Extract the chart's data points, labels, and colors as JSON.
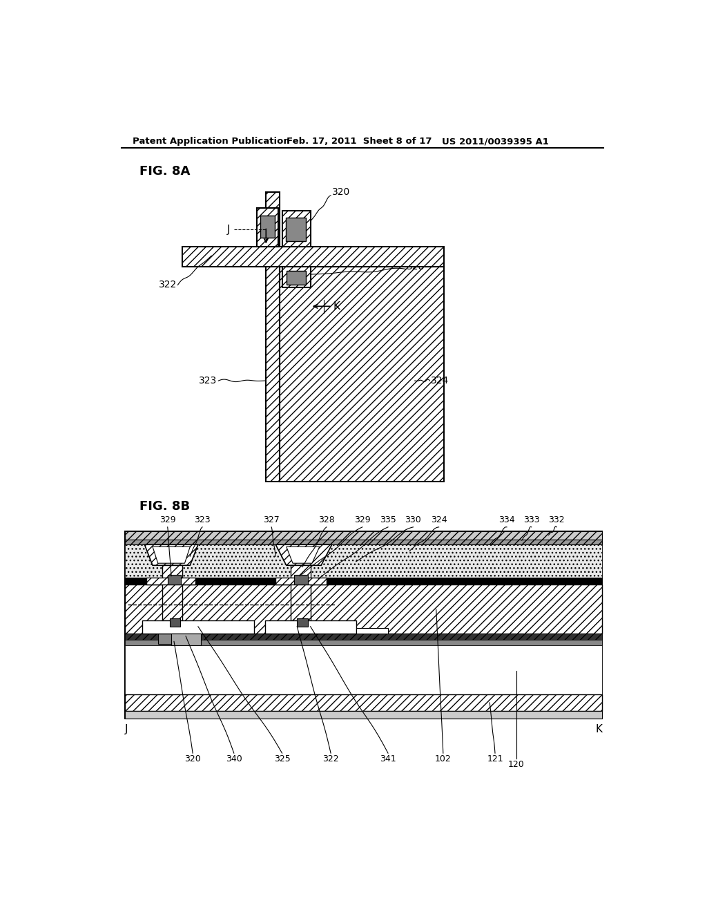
{
  "bg_color": "#ffffff",
  "header_left": "Patent Application Publication",
  "header_mid": "Feb. 17, 2011  Sheet 8 of 17",
  "header_right": "US 2011/0039395 A1"
}
